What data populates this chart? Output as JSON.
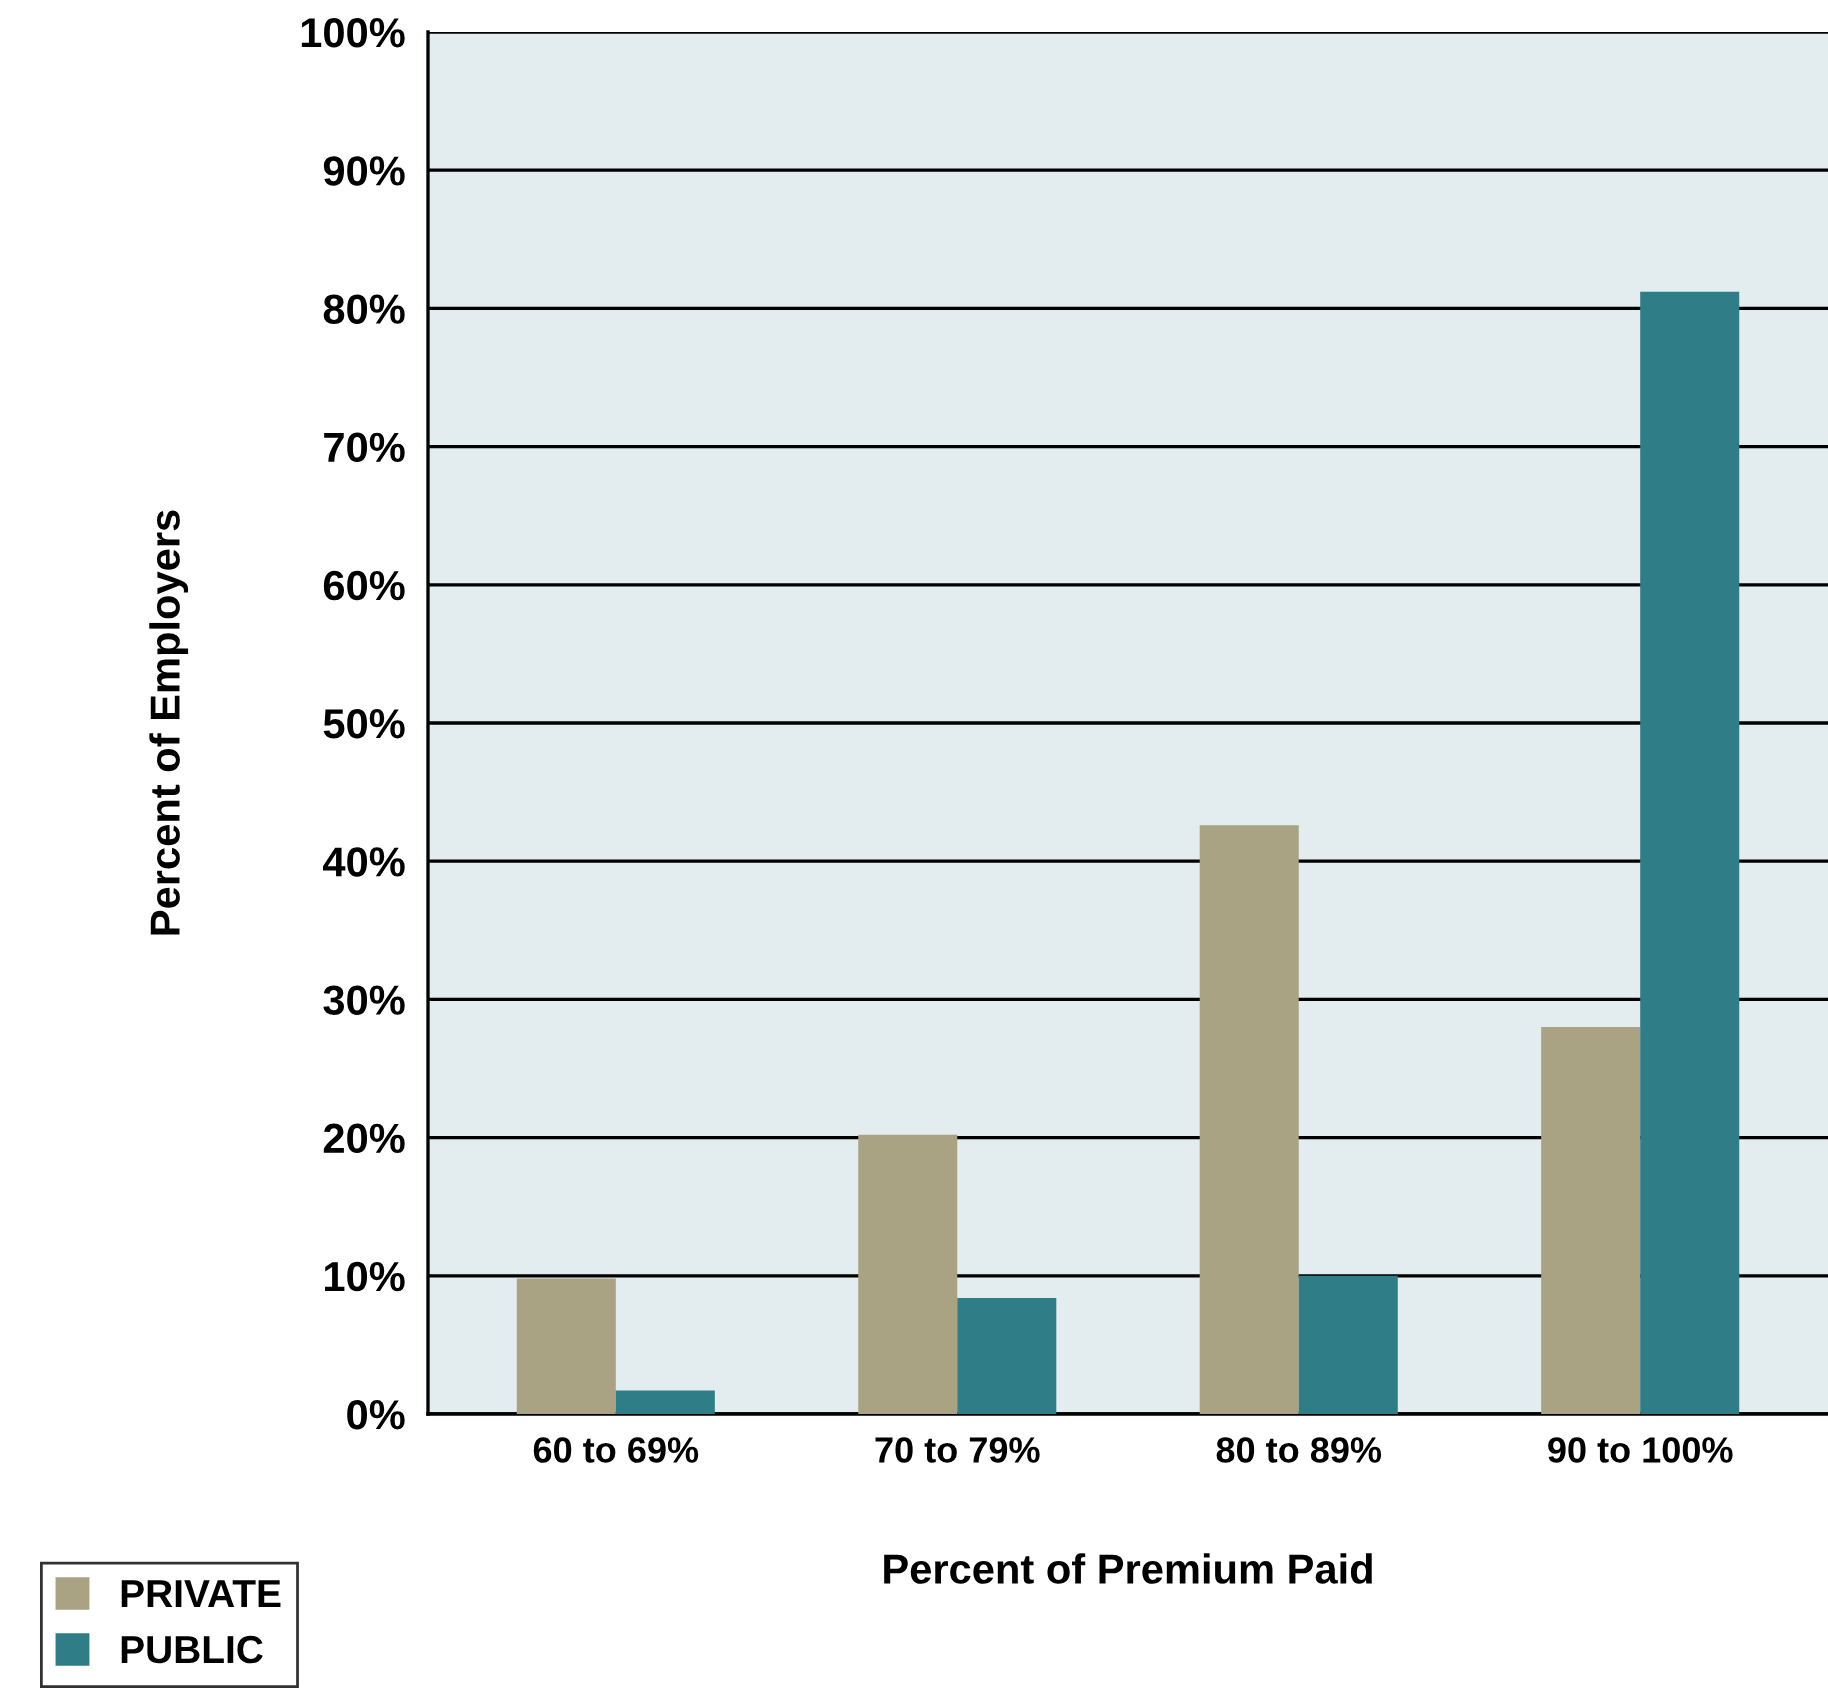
{
  "chart_data": {
    "type": "bar",
    "xlabel": "Percent of Premium Paid",
    "ylabel": "Percent of Employers",
    "categories": [
      "60 to 69%",
      "70 to 79%",
      "80 to 89%",
      "90 to 100%"
    ],
    "series": [
      {
        "name": "PRIVATE",
        "color": "#a9a283",
        "values": [
          9.8,
          20.2,
          42.6,
          28
        ]
      },
      {
        "name": "PUBLIC",
        "color": "#2f7d86",
        "values": [
          1.7,
          8.4,
          10,
          81.2
        ]
      }
    ],
    "ylim": [
      0,
      100
    ],
    "yticks": [
      {
        "value": 0,
        "label": "0%"
      },
      {
        "value": 10,
        "label": "10%"
      },
      {
        "value": 20,
        "label": "20%"
      },
      {
        "value": 30,
        "label": "30%"
      },
      {
        "value": 40,
        "label": "40%"
      },
      {
        "value": 50,
        "label": "50%"
      },
      {
        "value": 60,
        "label": "60%"
      },
      {
        "value": 70,
        "label": "70%"
      },
      {
        "value": 80,
        "label": "80%"
      },
      {
        "value": 90,
        "label": "90%"
      },
      {
        "value": 100,
        "label": "100%"
      }
    ],
    "grid": "y",
    "legend": "bottom left"
  }
}
